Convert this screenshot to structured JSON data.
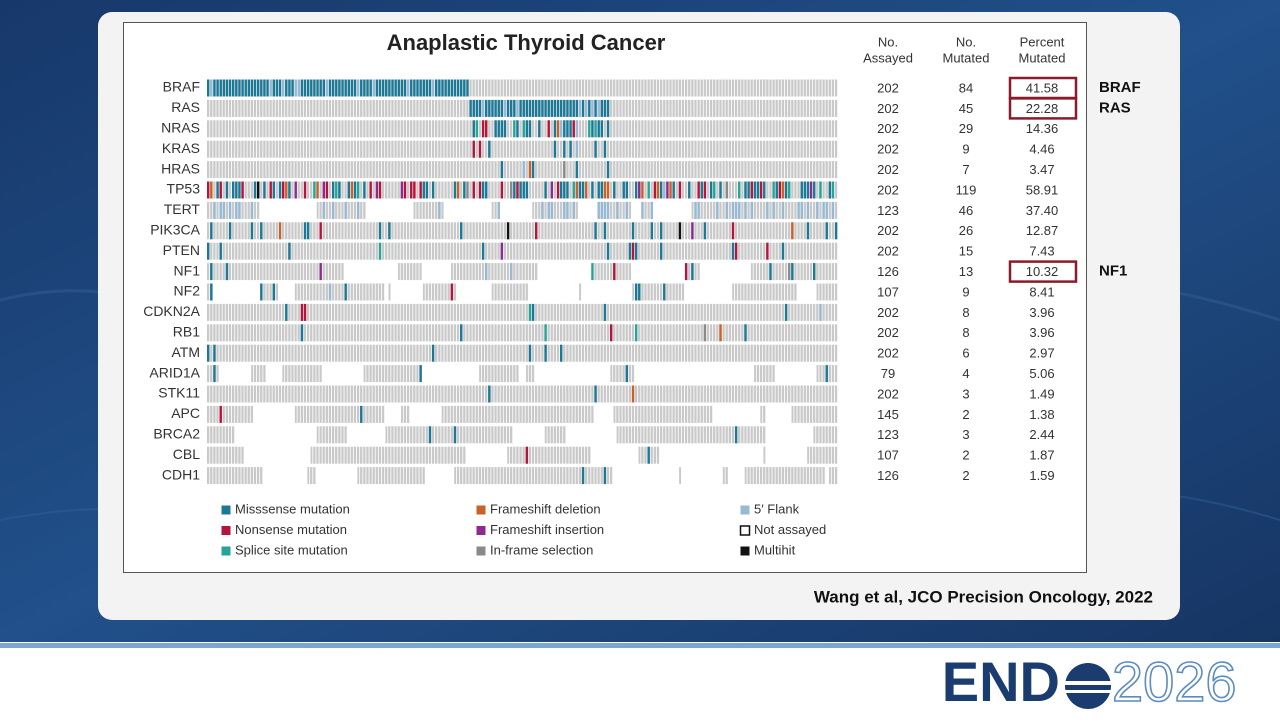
{
  "slide": {
    "title": "Anaplastic Thyroid Cancer",
    "columns": [
      [
        "No.",
        "Assayed"
      ],
      [
        "No.",
        "Mutated"
      ],
      [
        "Percent",
        "Mutated"
      ]
    ],
    "rows": [
      [
        "BRAF",
        "202",
        "84",
        "41.58"
      ],
      [
        "RAS",
        "202",
        "45",
        "22.28"
      ],
      [
        "NRAS",
        "202",
        "29",
        "14.36"
      ],
      [
        "KRAS",
        "202",
        "9",
        "4.46"
      ],
      [
        "HRAS",
        "202",
        "7",
        "3.47"
      ],
      [
        "TP53",
        "202",
        "119",
        "58.91"
      ],
      [
        "TERT",
        "123",
        "46",
        "37.40"
      ],
      [
        "PIK3CA",
        "202",
        "26",
        "12.87"
      ],
      [
        "PTEN",
        "202",
        "15",
        "7.43"
      ],
      [
        "NF1",
        "126",
        "13",
        "10.32"
      ],
      [
        "NF2",
        "107",
        "9",
        "8.41"
      ],
      [
        "CDKN2A",
        "202",
        "8",
        "3.96"
      ],
      [
        "RB1",
        "202",
        "8",
        "3.96"
      ],
      [
        "ATM",
        "202",
        "6",
        "2.97"
      ],
      [
        "ARID1A",
        "79",
        "4",
        "5.06"
      ],
      [
        "STK11",
        "202",
        "3",
        "1.49"
      ],
      [
        "APC",
        "145",
        "2",
        "1.38"
      ],
      [
        "BRCA2",
        "123",
        "3",
        "2.44"
      ],
      [
        "CBL",
        "107",
        "2",
        "1.87"
      ],
      [
        "CDH1",
        "126",
        "2",
        "1.59"
      ]
    ],
    "legend": [
      {
        "label": "Misssense mutation",
        "color": "#1d7896"
      },
      {
        "label": "Nonsense mutation",
        "color": "#b3163c"
      },
      {
        "label": "Splice site mutation",
        "color": "#26a596"
      },
      {
        "label": "Frameshift deletion",
        "color": "#c8622b"
      },
      {
        "label": "Frameshift insertion",
        "color": "#8c2a8e"
      },
      {
        "label": "In-frame selection",
        "color": "#8a8a8a"
      },
      {
        "label": "5′ Flank",
        "color": "#97b9d3"
      },
      {
        "label": "Not assayed",
        "color": "#ffffff"
      },
      {
        "label": "Multihit",
        "color": "#111111"
      }
    ],
    "highlights": [
      {
        "row": 0,
        "label": "BRAF"
      },
      {
        "row": 1,
        "label": "RAS"
      },
      {
        "row": 9,
        "label": "NF1"
      }
    ],
    "citation": "Wang et al, JCO Precision Oncology, 2022",
    "logo": {
      "left": "END",
      "right": "2026"
    }
  }
}
